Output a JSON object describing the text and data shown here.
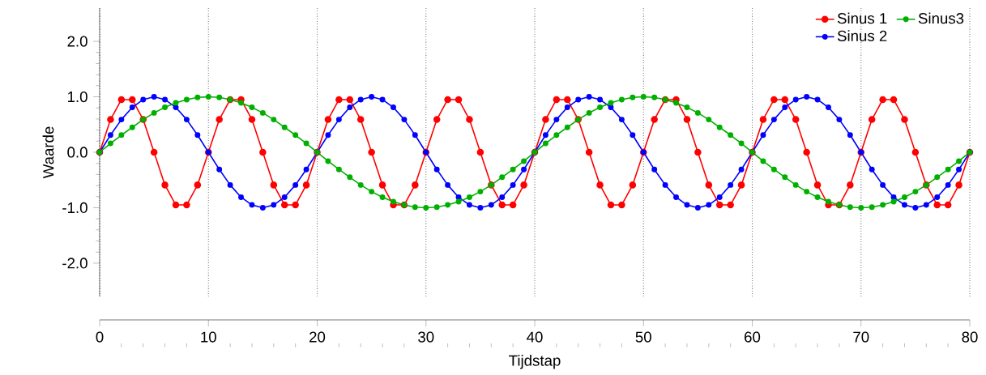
{
  "chart_data": {
    "type": "line",
    "xlabel": "Tijdstap",
    "ylabel": "Waarde",
    "x": [
      0,
      1,
      2,
      3,
      4,
      5,
      6,
      7,
      8,
      9,
      10,
      11,
      12,
      13,
      14,
      15,
      16,
      17,
      18,
      19,
      20,
      21,
      22,
      23,
      24,
      25,
      26,
      27,
      28,
      29,
      30,
      31,
      32,
      33,
      34,
      35,
      36,
      37,
      38,
      39,
      40,
      41,
      42,
      43,
      44,
      45,
      46,
      47,
      48,
      49,
      50,
      51,
      52,
      53,
      54,
      55,
      56,
      57,
      58,
      59,
      60,
      61,
      62,
      63,
      64,
      65,
      66,
      67,
      68,
      69,
      70,
      71,
      72,
      73,
      74,
      75,
      76,
      77,
      78,
      79,
      80
    ],
    "series": [
      {
        "name": "Sinus 1",
        "color": "#ff0000",
        "values": [
          0,
          0.59,
          0.95,
          0.95,
          0.59,
          0,
          -0.59,
          -0.95,
          -0.95,
          -0.59,
          0,
          0.59,
          0.95,
          0.95,
          0.59,
          0,
          -0.59,
          -0.95,
          -0.95,
          -0.59,
          0,
          0.59,
          0.95,
          0.95,
          0.59,
          0,
          -0.59,
          -0.95,
          -0.95,
          -0.59,
          0,
          0.59,
          0.95,
          0.95,
          0.59,
          0,
          -0.59,
          -0.95,
          -0.95,
          -0.59,
          0,
          0.59,
          0.95,
          0.95,
          0.59,
          0,
          -0.59,
          -0.95,
          -0.95,
          -0.59,
          0,
          0.59,
          0.95,
          0.95,
          0.59,
          0,
          -0.59,
          -0.95,
          -0.95,
          -0.59,
          0,
          0.59,
          0.95,
          0.95,
          0.59,
          0,
          -0.59,
          -0.95,
          -0.95,
          -0.59,
          0,
          0.59,
          0.95,
          0.95,
          0.59,
          0,
          -0.59,
          -0.95,
          -0.95,
          -0.59,
          0
        ]
      },
      {
        "name": "Sinus 2",
        "color": "#0000ff",
        "values": [
          0,
          0.31,
          0.59,
          0.81,
          0.95,
          1,
          0.95,
          0.81,
          0.59,
          0.31,
          0,
          -0.31,
          -0.59,
          -0.81,
          -0.95,
          -1,
          -0.95,
          -0.81,
          -0.59,
          -0.31,
          0,
          0.31,
          0.59,
          0.81,
          0.95,
          1,
          0.95,
          0.81,
          0.59,
          0.31,
          0,
          -0.31,
          -0.59,
          -0.81,
          -0.95,
          -1,
          -0.95,
          -0.81,
          -0.59,
          -0.31,
          0,
          0.31,
          0.59,
          0.81,
          0.95,
          1,
          0.95,
          0.81,
          0.59,
          0.31,
          0,
          -0.31,
          -0.59,
          -0.81,
          -0.95,
          -1,
          -0.95,
          -0.81,
          -0.59,
          -0.31,
          0,
          0.31,
          0.59,
          0.81,
          0.95,
          1,
          0.95,
          0.81,
          0.59,
          0.31,
          0,
          -0.31,
          -0.59,
          -0.81,
          -0.95,
          -1,
          -0.95,
          -0.81,
          -0.59,
          -0.31,
          0
        ]
      },
      {
        "name": "Sinus3",
        "color": "#00b000",
        "values": [
          0,
          0.16,
          0.31,
          0.45,
          0.59,
          0.71,
          0.81,
          0.89,
          0.95,
          0.99,
          1,
          0.99,
          0.95,
          0.89,
          0.81,
          0.71,
          0.59,
          0.45,
          0.31,
          0.16,
          0,
          -0.16,
          -0.31,
          -0.45,
          -0.59,
          -0.71,
          -0.81,
          -0.89,
          -0.95,
          -0.99,
          -1,
          -0.99,
          -0.95,
          -0.89,
          -0.81,
          -0.71,
          -0.59,
          -0.45,
          -0.31,
          -0.16,
          0,
          0.16,
          0.31,
          0.45,
          0.59,
          0.71,
          0.81,
          0.89,
          0.95,
          0.99,
          1,
          0.99,
          0.95,
          0.89,
          0.81,
          0.71,
          0.59,
          0.45,
          0.31,
          0.16,
          0,
          -0.16,
          -0.31,
          -0.45,
          -0.59,
          -0.71,
          -0.81,
          -0.89,
          -0.95,
          -0.99,
          -1,
          -0.99,
          -0.95,
          -0.89,
          -0.81,
          -0.71,
          -0.59,
          -0.45,
          -0.31,
          -0.16,
          0
        ]
      }
    ],
    "xlim": [
      0,
      80
    ],
    "xticks": [
      0,
      10,
      20,
      30,
      40,
      50,
      60,
      70,
      80
    ],
    "ylim": [
      -2.6,
      2.6
    ],
    "yticks": [
      {
        "value": -2,
        "label": "-2.0"
      },
      {
        "value": -1,
        "label": "-1.0"
      },
      {
        "value": 0,
        "label": "0.0"
      },
      {
        "value": 1,
        "label": "1.0"
      },
      {
        "value": 2,
        "label": "2.0"
      }
    ],
    "grid": "x",
    "legend": "top right",
    "marker": "circle",
    "line_style": "solid"
  }
}
